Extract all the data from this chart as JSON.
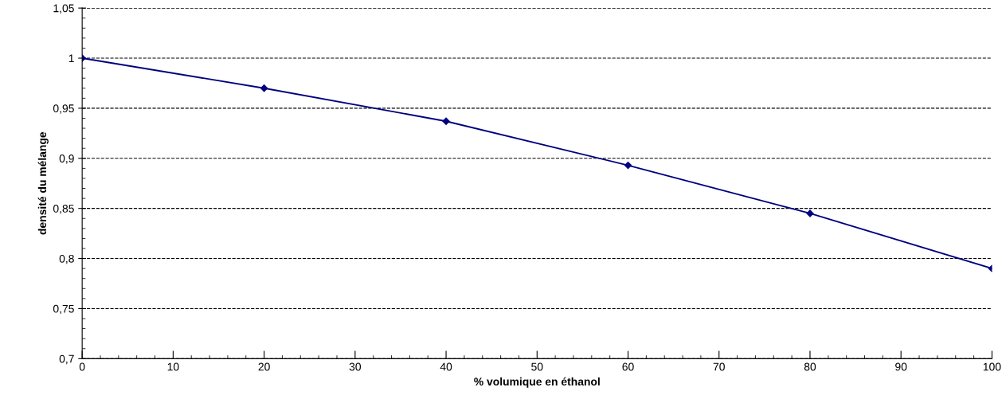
{
  "chart_data": {
    "type": "line",
    "xlabel": "% volumique en éthanol",
    "ylabel": "densité du mélange",
    "x": [
      0,
      20,
      40,
      60,
      80,
      100
    ],
    "series": [
      {
        "color": "#000080",
        "values": [
          1.0,
          0.97,
          0.937,
          0.893,
          0.845,
          0.79
        ]
      }
    ],
    "xlim": [
      0,
      100
    ],
    "xticks": [
      0,
      10,
      20,
      30,
      40,
      50,
      60,
      70,
      80,
      90,
      100
    ],
    "ylim": [
      0.7,
      1.05
    ],
    "yticks": [
      {
        "value": 0.7,
        "label": "0,7"
      },
      {
        "value": 0.75,
        "label": "0,75"
      },
      {
        "value": 0.8,
        "label": "0,8"
      },
      {
        "value": 0.85,
        "label": "0,85"
      },
      {
        "value": 0.9,
        "label": "0,9"
      },
      {
        "value": 0.95,
        "label": "0,95"
      },
      {
        "value": 1,
        "label": "1"
      },
      {
        "value": 1.05,
        "label": "1,05"
      }
    ],
    "grid": "y",
    "marker": "diamond",
    "line_style": "solid",
    "legend": false
  }
}
